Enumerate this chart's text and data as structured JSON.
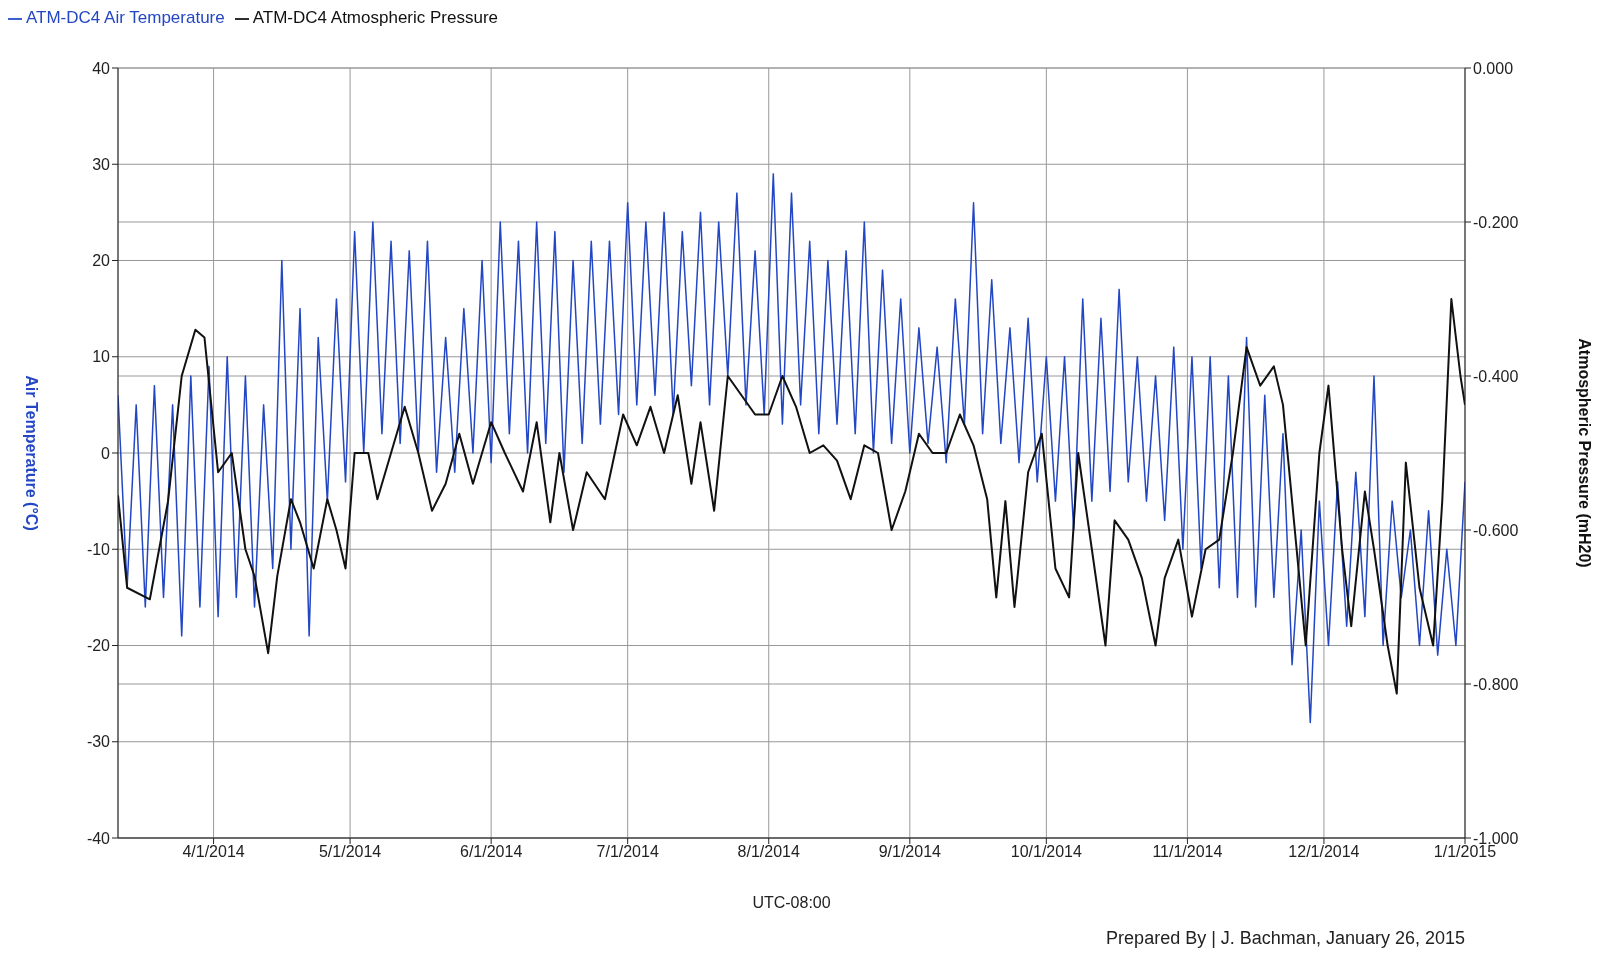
{
  "chart_data": {
    "type": "line",
    "xlabel": "UTC-08:00",
    "ylabel": "Air Temperature (°C)",
    "y2label": "Atmospheric Pressure (mH20)",
    "annotations": [
      "Prepared By | J. Bachman, January 26, 2015"
    ],
    "xlim": [
      "2014-03-11",
      "2015-01-01"
    ],
    "xticks": [
      {
        "value": "2014-04-01",
        "label": "4/1/2014"
      },
      {
        "value": "2014-05-01",
        "label": "5/1/2014"
      },
      {
        "value": "2014-06-01",
        "label": "6/1/2014"
      },
      {
        "value": "2014-07-01",
        "label": "7/1/2014"
      },
      {
        "value": "2014-08-01",
        "label": "8/1/2014"
      },
      {
        "value": "2014-09-01",
        "label": "9/1/2014"
      },
      {
        "value": "2014-10-01",
        "label": "10/1/2014"
      },
      {
        "value": "2014-11-01",
        "label": "11/1/2014"
      },
      {
        "value": "2014-12-01",
        "label": "12/1/2014"
      },
      {
        "value": "2015-01-01",
        "label": "1/1/2015"
      }
    ],
    "ylim": [
      -40,
      40
    ],
    "yticks": [
      -40,
      -30,
      -20,
      -10,
      0,
      10,
      20,
      30,
      40
    ],
    "y2lim": [
      -1,
      0
    ],
    "y2ticks": [
      {
        "value": -1,
        "label": "-1.000"
      },
      {
        "value": -0.8,
        "label": "-0.800"
      },
      {
        "value": -0.6,
        "label": "-0.600"
      },
      {
        "value": -0.4,
        "label": "-0.400"
      },
      {
        "value": -0.2,
        "label": "-0.200"
      },
      {
        "value": 0,
        "label": "0.000"
      }
    ],
    "grid": true,
    "legend": "top left",
    "marker": "none",
    "line_style": "solid",
    "series": [
      {
        "name": "ATM-DC4 Air Temperature",
        "color": "#2347c4",
        "x": [
          "2014-03-11",
          "2014-03-13",
          "2014-03-15",
          "2014-03-17",
          "2014-03-19",
          "2014-03-21",
          "2014-03-23",
          "2014-03-25",
          "2014-03-27",
          "2014-03-29",
          "2014-03-31",
          "2014-04-02",
          "2014-04-04",
          "2014-04-06",
          "2014-04-08",
          "2014-04-10",
          "2014-04-12",
          "2014-04-14",
          "2014-04-16",
          "2014-04-18",
          "2014-04-20",
          "2014-04-22",
          "2014-04-24",
          "2014-04-26",
          "2014-04-28",
          "2014-04-30",
          "2014-05-02",
          "2014-05-04",
          "2014-05-06",
          "2014-05-08",
          "2014-05-10",
          "2014-05-12",
          "2014-05-14",
          "2014-05-16",
          "2014-05-18",
          "2014-05-20",
          "2014-05-22",
          "2014-05-24",
          "2014-05-26",
          "2014-05-28",
          "2014-05-30",
          "2014-06-01",
          "2014-06-03",
          "2014-06-05",
          "2014-06-07",
          "2014-06-09",
          "2014-06-11",
          "2014-06-13",
          "2014-06-15",
          "2014-06-17",
          "2014-06-19",
          "2014-06-21",
          "2014-06-23",
          "2014-06-25",
          "2014-06-27",
          "2014-06-29",
          "2014-07-01",
          "2014-07-03",
          "2014-07-05",
          "2014-07-07",
          "2014-07-09",
          "2014-07-11",
          "2014-07-13",
          "2014-07-15",
          "2014-07-17",
          "2014-07-19",
          "2014-07-21",
          "2014-07-23",
          "2014-07-25",
          "2014-07-27",
          "2014-07-29",
          "2014-07-31",
          "2014-08-02",
          "2014-08-04",
          "2014-08-06",
          "2014-08-08",
          "2014-08-10",
          "2014-08-12",
          "2014-08-14",
          "2014-08-16",
          "2014-08-18",
          "2014-08-20",
          "2014-08-22",
          "2014-08-24",
          "2014-08-26",
          "2014-08-28",
          "2014-08-30",
          "2014-09-01",
          "2014-09-03",
          "2014-09-05",
          "2014-09-07",
          "2014-09-09",
          "2014-09-11",
          "2014-09-13",
          "2014-09-15",
          "2014-09-17",
          "2014-09-19",
          "2014-09-21",
          "2014-09-23",
          "2014-09-25",
          "2014-09-27",
          "2014-09-29",
          "2014-10-01",
          "2014-10-03",
          "2014-10-05",
          "2014-10-07",
          "2014-10-09",
          "2014-10-11",
          "2014-10-13",
          "2014-10-15",
          "2014-10-17",
          "2014-10-19",
          "2014-10-21",
          "2014-10-23",
          "2014-10-25",
          "2014-10-27",
          "2014-10-29",
          "2014-10-31",
          "2014-11-02",
          "2014-11-04",
          "2014-11-06",
          "2014-11-08",
          "2014-11-10",
          "2014-11-12",
          "2014-11-14",
          "2014-11-16",
          "2014-11-18",
          "2014-11-20",
          "2014-11-22",
          "2014-11-24",
          "2014-11-26",
          "2014-11-28",
          "2014-11-30",
          "2014-12-02",
          "2014-12-04",
          "2014-12-06",
          "2014-12-08",
          "2014-12-10",
          "2014-12-12",
          "2014-12-14",
          "2014-12-16",
          "2014-12-18",
          "2014-12-20",
          "2014-12-22",
          "2014-12-24",
          "2014-12-26",
          "2014-12-28",
          "2014-12-30",
          "2015-01-01"
        ],
        "values": [
          6,
          -14,
          5,
          -16,
          7,
          -15,
          5,
          -19,
          8,
          -16,
          9,
          -17,
          10,
          -15,
          8,
          -16,
          5,
          -12,
          20,
          -10,
          15,
          -19,
          12,
          -5,
          16,
          -3,
          23,
          0,
          24,
          2,
          22,
          1,
          21,
          0,
          22,
          -2,
          12,
          -2,
          15,
          0,
          20,
          -1,
          24,
          2,
          22,
          0,
          24,
          1,
          23,
          -2,
          20,
          1,
          22,
          3,
          22,
          4,
          26,
          5,
          24,
          6,
          25,
          4,
          23,
          7,
          25,
          5,
          24,
          8,
          27,
          5,
          21,
          4,
          29,
          3,
          27,
          5,
          22,
          2,
          20,
          3,
          21,
          2,
          24,
          0,
          19,
          1,
          16,
          0,
          13,
          1,
          11,
          -1,
          16,
          3,
          26,
          2,
          18,
          1,
          13,
          -1,
          14,
          -3,
          10,
          -5,
          10,
          -8,
          16,
          -5,
          14,
          -4,
          17,
          -3,
          10,
          -5,
          8,
          -7,
          11,
          -10,
          10,
          -12,
          10,
          -14,
          8,
          -15,
          12,
          -16,
          6,
          -15,
          2,
          -22,
          -8,
          -28,
          -5,
          -20,
          -3,
          -18,
          -2,
          -17,
          8,
          -20,
          -5,
          -15,
          -8,
          -20,
          -6,
          -21,
          -10,
          -20,
          -3
        ]
      },
      {
        "name": "ATM-DC4 Atmospheric Pressure",
        "color": "#111111",
        "axis": "y2",
        "x": [
          "2014-03-11",
          "2014-03-13",
          "2014-03-18",
          "2014-03-22",
          "2014-03-25",
          "2014-03-28",
          "2014-03-30",
          "2014-04-02",
          "2014-04-05",
          "2014-04-08",
          "2014-04-10",
          "2014-04-13",
          "2014-04-15",
          "2014-04-18",
          "2014-04-20",
          "2014-04-23",
          "2014-04-26",
          "2014-04-28",
          "2014-04-30",
          "2014-05-02",
          "2014-05-05",
          "2014-05-07",
          "2014-05-10",
          "2014-05-13",
          "2014-05-16",
          "2014-05-19",
          "2014-05-22",
          "2014-05-25",
          "2014-05-28",
          "2014-06-01",
          "2014-06-04",
          "2014-06-08",
          "2014-06-11",
          "2014-06-14",
          "2014-06-16",
          "2014-06-19",
          "2014-06-22",
          "2014-06-26",
          "2014-06-30",
          "2014-07-03",
          "2014-07-06",
          "2014-07-09",
          "2014-07-12",
          "2014-07-15",
          "2014-07-17",
          "2014-07-20",
          "2014-07-23",
          "2014-07-26",
          "2014-07-29",
          "2014-08-01",
          "2014-08-04",
          "2014-08-07",
          "2014-08-10",
          "2014-08-13",
          "2014-08-16",
          "2014-08-19",
          "2014-08-22",
          "2014-08-25",
          "2014-08-28",
          "2014-08-31",
          "2014-09-03",
          "2014-09-06",
          "2014-09-09",
          "2014-09-12",
          "2014-09-15",
          "2014-09-18",
          "2014-09-20",
          "2014-09-22",
          "2014-09-24",
          "2014-09-27",
          "2014-09-30",
          "2014-10-03",
          "2014-10-06",
          "2014-10-08",
          "2014-10-11",
          "2014-10-14",
          "2014-10-16",
          "2014-10-19",
          "2014-10-22",
          "2014-10-25",
          "2014-10-27",
          "2014-10-30",
          "2014-11-02",
          "2014-11-05",
          "2014-11-08",
          "2014-11-11",
          "2014-11-14",
          "2014-11-17",
          "2014-11-20",
          "2014-11-22",
          "2014-11-24",
          "2014-11-27",
          "2014-11-30",
          "2014-12-02",
          "2014-12-05",
          "2014-12-07",
          "2014-12-10",
          "2014-12-12",
          "2014-12-15",
          "2014-12-17",
          "2014-12-19",
          "2014-12-22",
          "2014-12-25",
          "2014-12-27",
          "2014-12-29",
          "2014-12-31",
          "2015-01-01"
        ],
        "values": [
          -0.555,
          -0.675,
          -0.69,
          -0.5625,
          -0.4,
          -0.34,
          -0.35,
          -0.525,
          -0.5,
          -0.625,
          -0.66,
          -0.76,
          -0.66,
          -0.56,
          -0.59,
          -0.65,
          -0.56,
          -0.6,
          -0.65,
          -0.5,
          -0.5,
          -0.56,
          -0.5,
          -0.44,
          -0.5,
          -0.575,
          -0.54,
          -0.475,
          -0.54,
          -0.46,
          -0.5,
          -0.55,
          -0.46,
          -0.59,
          -0.5,
          -0.6,
          -0.525,
          -0.56,
          -0.45,
          -0.49,
          -0.44,
          -0.5,
          -0.425,
          -0.54,
          -0.46,
          -0.575,
          -0.4,
          -0.425,
          -0.45,
          -0.45,
          -0.4,
          -0.44,
          -0.5,
          -0.49,
          -0.51,
          -0.56,
          -0.49,
          -0.5,
          -0.6,
          -0.55,
          -0.475,
          -0.5,
          -0.5,
          -0.45,
          -0.49,
          -0.56,
          -0.6875,
          -0.5625,
          -0.7,
          -0.525,
          -0.475,
          -0.65,
          -0.6875,
          -0.5,
          -0.625,
          -0.75,
          -0.5875,
          -0.6125,
          -0.6625,
          -0.75,
          -0.6625,
          -0.6125,
          -0.7125,
          -0.625,
          -0.6125,
          -0.5,
          -0.3625,
          -0.4125,
          -0.3875,
          -0.4375,
          -0.5625,
          -0.75,
          -0.5,
          -0.4125,
          -0.625,
          -0.725,
          -0.55,
          -0.625,
          -0.75,
          -0.8125,
          -0.5125,
          -0.675,
          -0.75,
          -0.5625,
          -0.3,
          -0.4,
          -0.4375
        ]
      }
    ]
  }
}
